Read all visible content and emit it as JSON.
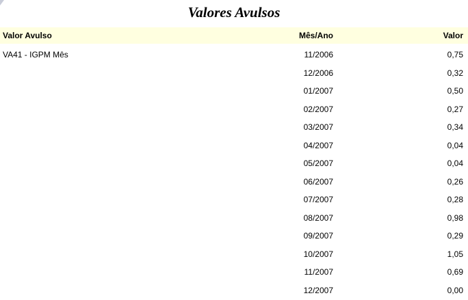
{
  "title": "Valores Avulsos",
  "columns": {
    "name": "Valor Avulso",
    "period": "Mês/Ano",
    "value": "Valor"
  },
  "rows": [
    {
      "name": "VA41 - IGPM Mês",
      "period": "11/2006",
      "value": "0,75"
    },
    {
      "name": "",
      "period": "12/2006",
      "value": "0,32"
    },
    {
      "name": "",
      "period": "01/2007",
      "value": "0,50"
    },
    {
      "name": "",
      "period": "02/2007",
      "value": "0,27"
    },
    {
      "name": "",
      "period": "03/2007",
      "value": "0,34"
    },
    {
      "name": "",
      "period": "04/2007",
      "value": "0,04"
    },
    {
      "name": "",
      "period": "05/2007",
      "value": "0,04"
    },
    {
      "name": "",
      "period": "06/2007",
      "value": "0,26"
    },
    {
      "name": "",
      "period": "07/2007",
      "value": "0,28"
    },
    {
      "name": "",
      "period": "08/2007",
      "value": "0,98"
    },
    {
      "name": "",
      "period": "09/2007",
      "value": "0,29"
    },
    {
      "name": "",
      "period": "10/2007",
      "value": "1,05"
    },
    {
      "name": "",
      "period": "11/2007",
      "value": "0,69"
    },
    {
      "name": "",
      "period": "12/2007",
      "value": "0,00"
    }
  ],
  "colors": {
    "header_background": "#ffffe0"
  }
}
